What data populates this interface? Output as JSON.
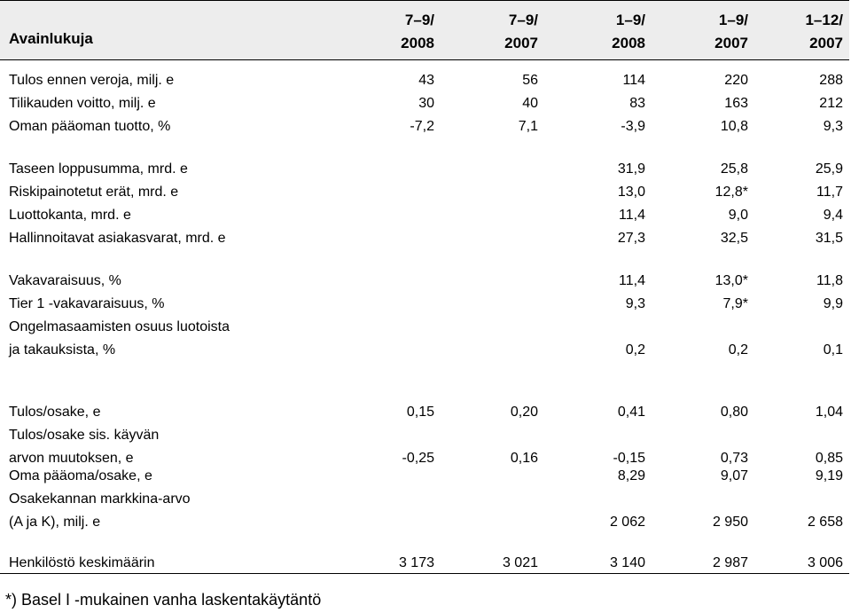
{
  "table": {
    "title": "Avainlukuja",
    "columns": [
      {
        "line1": "7–9/",
        "line2": "2008"
      },
      {
        "line1": "7–9/",
        "line2": "2007"
      },
      {
        "line1": "1–9/",
        "line2": "2008"
      },
      {
        "line1": "1–9/",
        "line2": "2007"
      },
      {
        "line1": "1–12/",
        "line2": "2007"
      }
    ],
    "rows": [
      {
        "label": "Tulos ennen veroja, milj. e",
        "values": [
          "43",
          "56",
          "114",
          "220",
          "288"
        ]
      },
      {
        "label": "Tilikauden voitto, milj. e",
        "values": [
          "30",
          "40",
          "83",
          "163",
          "212"
        ]
      },
      {
        "label": "Oman pääoman tuotto, %",
        "values": [
          "-7,2",
          "7,1",
          "-3,9",
          "10,8",
          "9,3"
        ]
      },
      {
        "label": "Taseen loppusumma, mrd. e",
        "values": [
          "",
          "",
          "31,9",
          "25,8",
          "25,9"
        ]
      },
      {
        "label": "Riskipainotetut erät, mrd. e",
        "values": [
          "",
          "",
          "13,0",
          "12,8*",
          "11,7"
        ]
      },
      {
        "label": "Luottokanta, mrd. e",
        "values": [
          "",
          "",
          "11,4",
          "9,0",
          "9,4"
        ]
      },
      {
        "label": "Hallinnoitavat asiakasvarat, mrd. e",
        "values": [
          "",
          "",
          "27,3",
          "32,5",
          "31,5"
        ]
      },
      {
        "label": "Vakavaraisuus, %",
        "values": [
          "",
          "",
          "11,4",
          "13,0*",
          "11,8"
        ]
      },
      {
        "label": "Tier 1 -vakavaraisuus, %",
        "values": [
          "",
          "",
          "9,3",
          "7,9*",
          "9,9"
        ]
      },
      {
        "label": "Ongelmasaamisten osuus luotoista",
        "label2": "ja takauksista, %",
        "values": [
          "",
          "",
          "0,2",
          "0,2",
          "0,1"
        ]
      },
      {
        "label": "Tulos/osake, e",
        "values": [
          "0,15",
          "0,20",
          "0,41",
          "0,80",
          "1,04"
        ]
      },
      {
        "label": "Tulos/osake sis. käyvän",
        "label2": "arvon muutoksen, e",
        "values": [
          "-0,25",
          "0,16",
          "-0,15",
          "0,73",
          "0,85"
        ]
      },
      {
        "label": "Oma pääoma/osake, e",
        "values": [
          "",
          "",
          "8,29",
          "9,07",
          "9,19"
        ]
      },
      {
        "label": "Osakekannan markkina-arvo",
        "label2": "(A ja K), milj. e",
        "values": [
          "",
          "",
          "2 062",
          "2 950",
          "2 658"
        ]
      },
      {
        "label": "Henkilöstö keskimäärin",
        "values": [
          "3 173",
          "3 021",
          "3 140",
          "2 987",
          "3 006"
        ]
      }
    ]
  },
  "footnote": "*) Basel I -mukainen vanha laskentakäytäntö"
}
